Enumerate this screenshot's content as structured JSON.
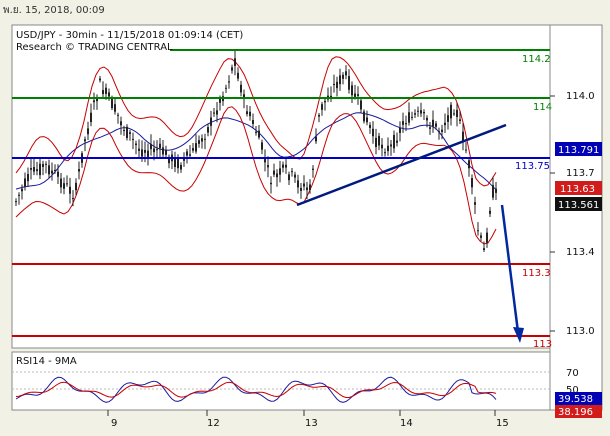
{
  "header": {
    "date": "พ.ย. 15, 2018, 00:09"
  },
  "chart": {
    "title": "USD/JPY - 30min - 11/15/2018 01:09:14 (CET)",
    "subtitle": "Research © TRADING CENTRAL",
    "rsi_label": "RSI14 - 9MA",
    "price_ticks": [
      "114.0",
      "113.7",
      "113.4",
      "113.0"
    ],
    "rsi_ticks": [
      "70",
      "50"
    ],
    "x_ticks": [
      "9",
      "12",
      "13",
      "14",
      "15"
    ],
    "levels": {
      "green_high": "114.2",
      "green_mid": "114",
      "blue": "113.75",
      "red_mid": "113.3",
      "red_low": "113"
    },
    "badges": {
      "resistance": "113.791",
      "ma": "113.63",
      "last": "113.561",
      "rsi": "39.538",
      "rsi_ma": "38.196"
    }
  },
  "colors": {
    "bg": "#f1f1e6",
    "plot_bg": "#ffffff",
    "green": "#008000",
    "blue": "#0000c8",
    "red": "#c80000",
    "dark_blue": "#001a80"
  }
}
